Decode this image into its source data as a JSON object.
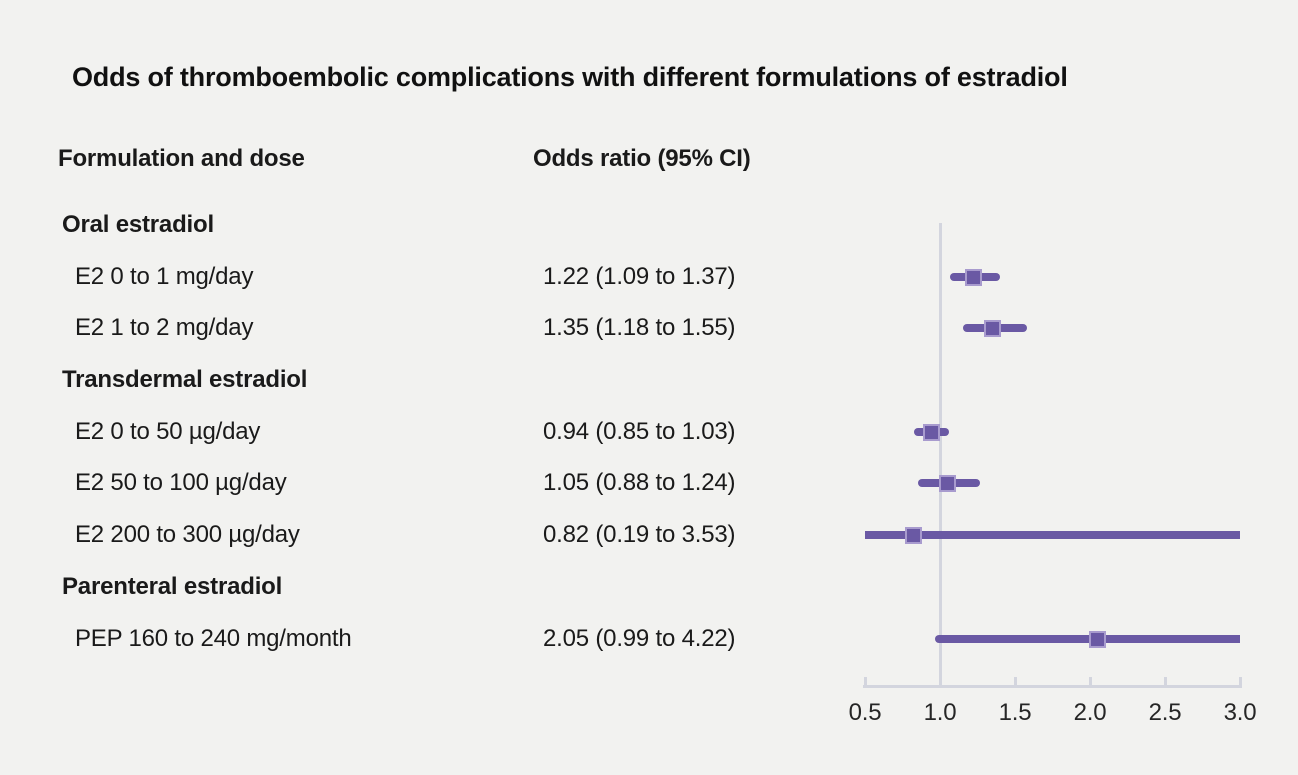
{
  "chart_data": {
    "type": "forest",
    "title": "Odds of thromboembolic complications with different formulations of estradiol",
    "column_headers": {
      "formulation": "Formulation and dose",
      "odds_ratio": "Odds ratio (95% CI)"
    },
    "scale": "linear",
    "xlim": [
      0.5,
      3.0
    ],
    "x_ticks": [
      0.5,
      1.0,
      1.5,
      2.0,
      2.5,
      3.0
    ],
    "x_tick_labels": [
      "0.5",
      "1.0",
      "1.5",
      "2.0",
      "2.5",
      "3.0"
    ],
    "reference_line": 1.0,
    "grid": false,
    "legend": false,
    "groups": [
      {
        "label": "Oral estradiol",
        "items": [
          {
            "label": "E2 0 to 1 mg/day",
            "value_text": "1.22 (1.09 to 1.37)",
            "or": 1.22,
            "ci_low": 1.09,
            "ci_high": 1.37
          },
          {
            "label": "E2 1 to 2 mg/day",
            "value_text": "1.35 (1.18 to 1.55)",
            "or": 1.35,
            "ci_low": 1.18,
            "ci_high": 1.55
          }
        ]
      },
      {
        "label": "Transdermal estradiol",
        "items": [
          {
            "label": "E2 0 to 50 µg/day",
            "value_text": "0.94 (0.85 to 1.03)",
            "or": 0.94,
            "ci_low": 0.85,
            "ci_high": 1.03
          },
          {
            "label": "E2 50 to 100 µg/day",
            "value_text": "1.05 (0.88 to 1.24)",
            "or": 1.05,
            "ci_low": 0.88,
            "ci_high": 1.24
          },
          {
            "label": "E2 200 to 300 µg/day",
            "value_text": "0.82 (0.19 to 3.53)",
            "or": 0.82,
            "ci_low": 0.19,
            "ci_high": 3.53
          }
        ]
      },
      {
        "label": "Parenteral estradiol",
        "items": [
          {
            "label": "PEP 160 to 240 mg/month",
            "value_text": "2.05 (0.99 to 4.22)",
            "or": 2.05,
            "ci_low": 0.99,
            "ci_high": 4.22
          }
        ]
      }
    ]
  },
  "colors": {
    "background": "#f2f2f0",
    "purple": "#6a59a4",
    "marker_border": "#a89bce",
    "axis_gray": "#d3d5de",
    "text": "#1a1a1a"
  }
}
